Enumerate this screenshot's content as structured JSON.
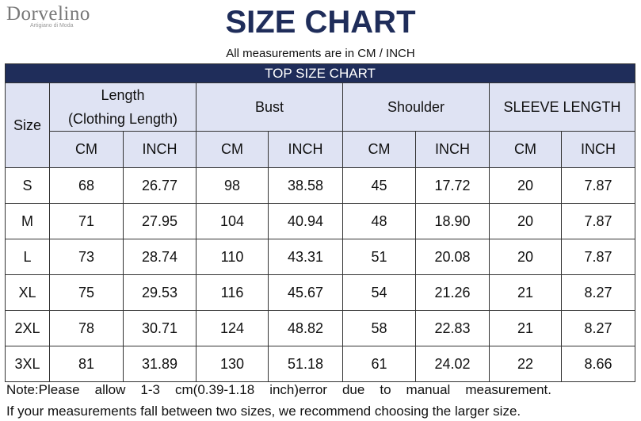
{
  "logo": {
    "name": "Dorvelino",
    "tagline": "Artigiano di Moda"
  },
  "header": {
    "title": "SIZE CHART",
    "subtitle": "All measurements are in CM / INCH"
  },
  "table": {
    "title": "TOP SIZE CHART",
    "size_header": "Size",
    "groups": [
      {
        "label": "Length",
        "sublabel": "(Clothing Length)",
        "units": [
          "CM",
          "INCH"
        ]
      },
      {
        "label": "Bust",
        "units": [
          "CM",
          "INCH"
        ]
      },
      {
        "label": "Shoulder",
        "units": [
          "CM",
          "INCH"
        ]
      },
      {
        "label": "SLEEVE LENGTH",
        "units": [
          "CM",
          "INCH"
        ]
      }
    ],
    "rows": [
      [
        "S",
        "68",
        "26.77",
        "98",
        "38.58",
        "45",
        "17.72",
        "20",
        "7.87"
      ],
      [
        "M",
        "71",
        "27.95",
        "104",
        "40.94",
        "48",
        "18.90",
        "20",
        "7.87"
      ],
      [
        "L",
        "73",
        "28.74",
        "110",
        "43.31",
        "51",
        "20.08",
        "20",
        "7.87"
      ],
      [
        "XL",
        "75",
        "29.53",
        "116",
        "45.67",
        "54",
        "21.26",
        "21",
        "8.27"
      ],
      [
        "2XL",
        "78",
        "30.71",
        "124",
        "48.82",
        "58",
        "22.83",
        "21",
        "8.27"
      ],
      [
        "3XL",
        "81",
        "31.89",
        "130",
        "51.18",
        "61",
        "24.02",
        "22",
        "8.66"
      ]
    ]
  },
  "notes": [
    "Note:Please allow 1-3 cm(0.39-1.18 inch)error due to manual measurement.",
    "If your measurements fall between two sizes, we recommend choosing the larger size."
  ]
}
